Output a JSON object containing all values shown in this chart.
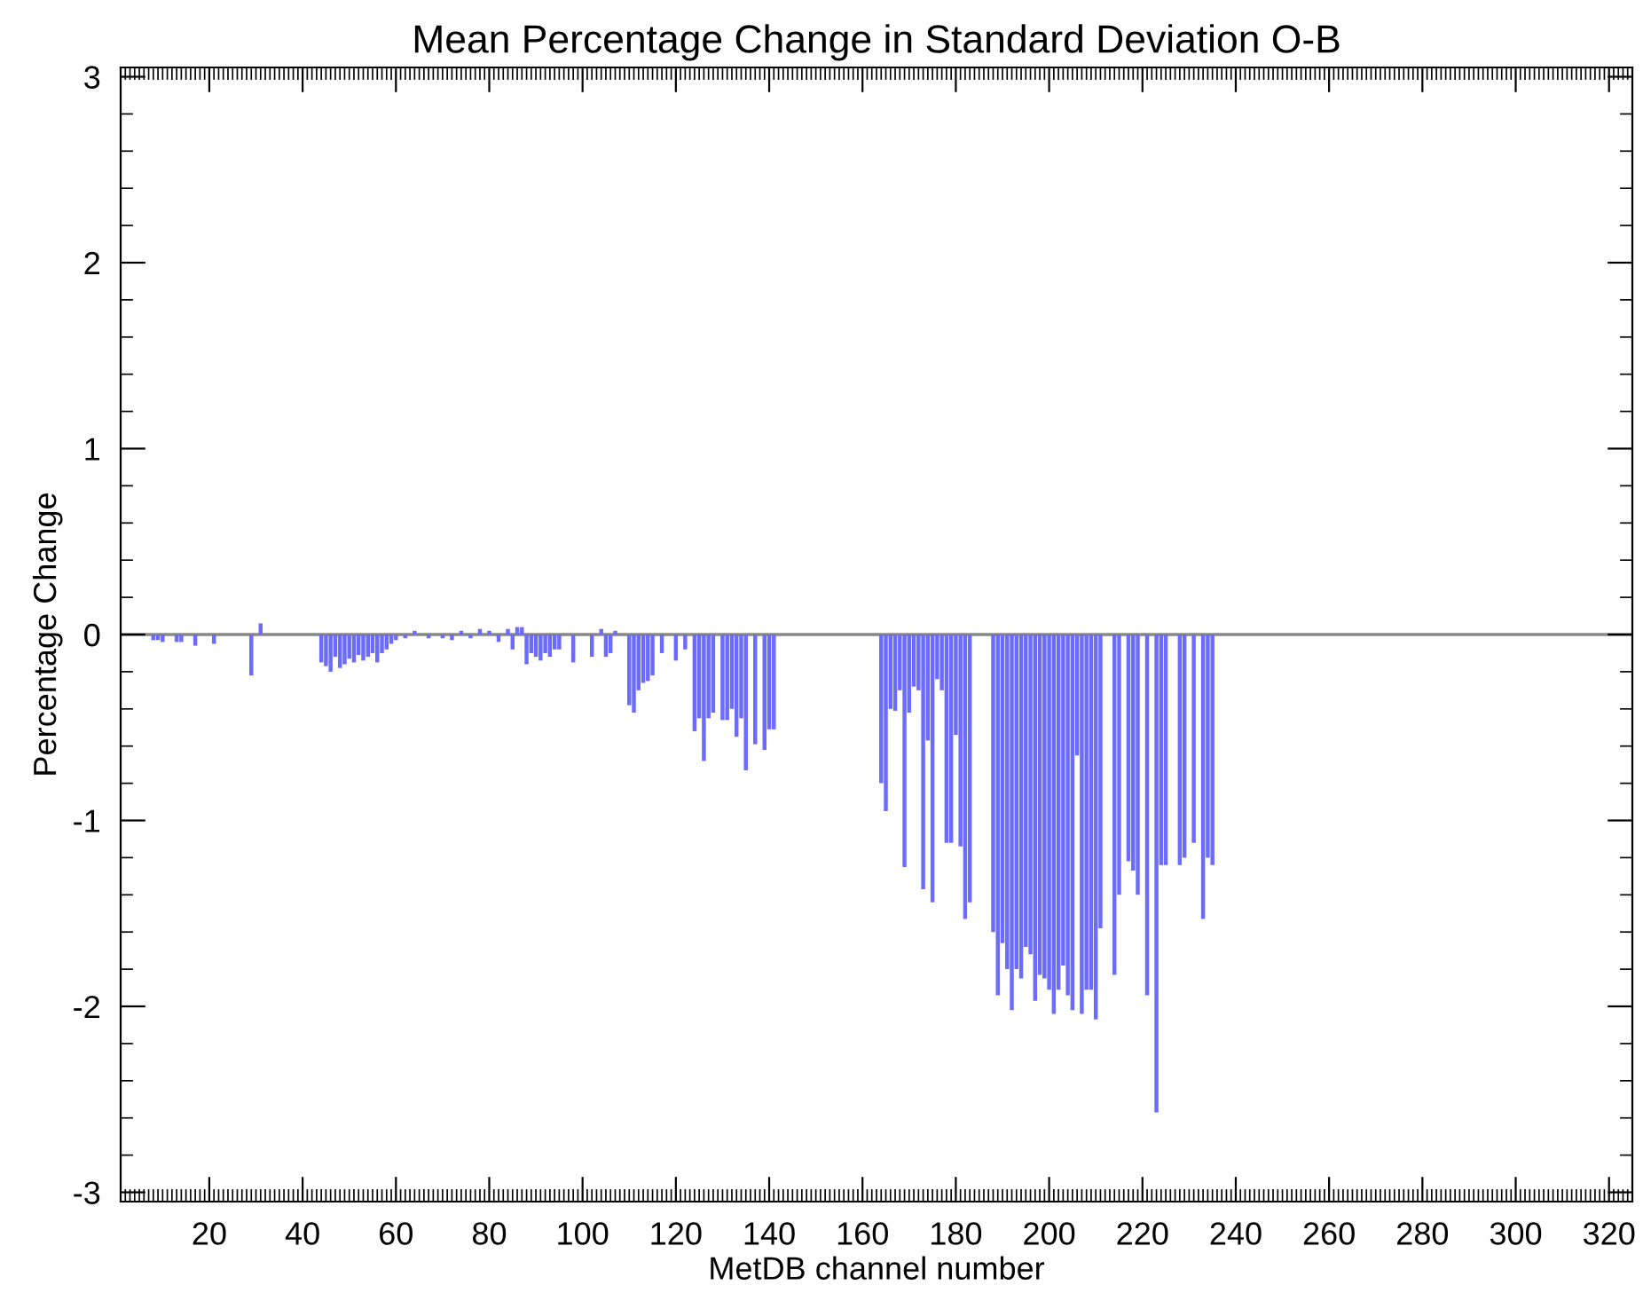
{
  "chart_data": {
    "type": "bar",
    "title": "Mean Percentage Change in Standard Deviation O-B",
    "xlabel": "MetDB channel number",
    "ylabel": "Percentage Change",
    "color": "#6b6bff",
    "x": [
      8,
      9,
      10,
      13,
      14,
      17,
      21,
      29,
      31,
      44,
      45,
      46,
      47,
      48,
      49,
      50,
      51,
      52,
      53,
      54,
      55,
      56,
      57,
      58,
      59,
      60,
      62,
      64,
      67,
      70,
      72,
      74,
      76,
      78,
      80,
      82,
      84,
      85,
      86,
      87,
      88,
      89,
      90,
      91,
      92,
      93,
      94,
      95,
      98,
      102,
      104,
      105,
      106,
      107,
      110,
      111,
      112,
      113,
      114,
      115,
      117,
      120,
      122,
      124,
      125,
      126,
      127,
      128,
      130,
      131,
      132,
      133,
      134,
      135,
      137,
      139,
      140,
      141,
      164,
      165,
      166,
      167,
      168,
      169,
      170,
      171,
      172,
      173,
      174,
      175,
      176,
      177,
      178,
      179,
      180,
      181,
      182,
      183,
      188,
      189,
      190,
      191,
      192,
      193,
      194,
      195,
      196,
      197,
      198,
      199,
      200,
      201,
      202,
      203,
      204,
      205,
      206,
      207,
      208,
      209,
      210,
      211,
      214,
      215,
      217,
      218,
      219,
      221,
      223,
      224,
      225,
      228,
      229,
      231,
      233,
      234,
      235
    ],
    "values": [
      -0.03,
      -0.03,
      -0.04,
      -0.04,
      -0.04,
      -0.06,
      -0.05,
      -0.22,
      0.06,
      -0.15,
      -0.17,
      -0.2,
      -0.12,
      -0.18,
      -0.16,
      -0.13,
      -0.15,
      -0.11,
      -0.14,
      -0.12,
      -0.1,
      -0.15,
      -0.1,
      -0.08,
      -0.05,
      -0.03,
      -0.02,
      0.02,
      -0.02,
      -0.02,
      -0.03,
      0.02,
      -0.02,
      0.03,
      0.02,
      -0.04,
      0.03,
      -0.08,
      0.04,
      0.04,
      -0.16,
      -0.1,
      -0.12,
      -0.14,
      -0.1,
      -0.12,
      -0.08,
      -0.08,
      -0.15,
      -0.12,
      0.03,
      -0.12,
      -0.1,
      0.02,
      -0.38,
      -0.42,
      -0.3,
      -0.26,
      -0.25,
      -0.22,
      -0.1,
      -0.14,
      -0.08,
      -0.52,
      -0.45,
      -0.68,
      -0.45,
      -0.42,
      -0.46,
      -0.46,
      -0.4,
      -0.55,
      -0.45,
      -0.73,
      -0.59,
      -0.62,
      -0.51,
      -0.51,
      -0.8,
      -0.95,
      -0.4,
      -0.41,
      -0.3,
      -1.25,
      -0.42,
      -0.28,
      -0.3,
      -1.37,
      -0.57,
      -1.44,
      -0.24,
      -0.3,
      -1.12,
      -1.12,
      -0.54,
      -1.14,
      -1.53,
      -1.44,
      -1.6,
      -1.94,
      -1.66,
      -1.8,
      -2.02,
      -1.8,
      -1.85,
      -1.68,
      -1.72,
      -1.97,
      -1.83,
      -1.85,
      -1.91,
      -2.04,
      -1.91,
      -1.78,
      -1.94,
      -2.02,
      -0.65,
      -2.04,
      -1.91,
      -1.91,
      -2.07,
      -1.58,
      -1.83,
      -1.4,
      -1.22,
      -1.27,
      -1.4,
      -1.94,
      -2.57,
      -1.24,
      -1.24,
      -1.24,
      -1.2,
      -1.12,
      -1.53,
      -1.2,
      -1.24
    ],
    "xlim": [
      1,
      325
    ],
    "xticks": [
      20,
      40,
      60,
      80,
      100,
      120,
      140,
      160,
      180,
      200,
      220,
      240,
      260,
      280,
      300,
      320
    ],
    "ylim": [
      -3.05,
      3.05
    ],
    "yticks": [
      -3,
      -2,
      -1,
      0,
      1,
      2,
      3
    ],
    "ref_lines": [
      {
        "axis": "y",
        "value": 0,
        "color": "#888888"
      }
    ],
    "grid": false,
    "legend": false
  }
}
